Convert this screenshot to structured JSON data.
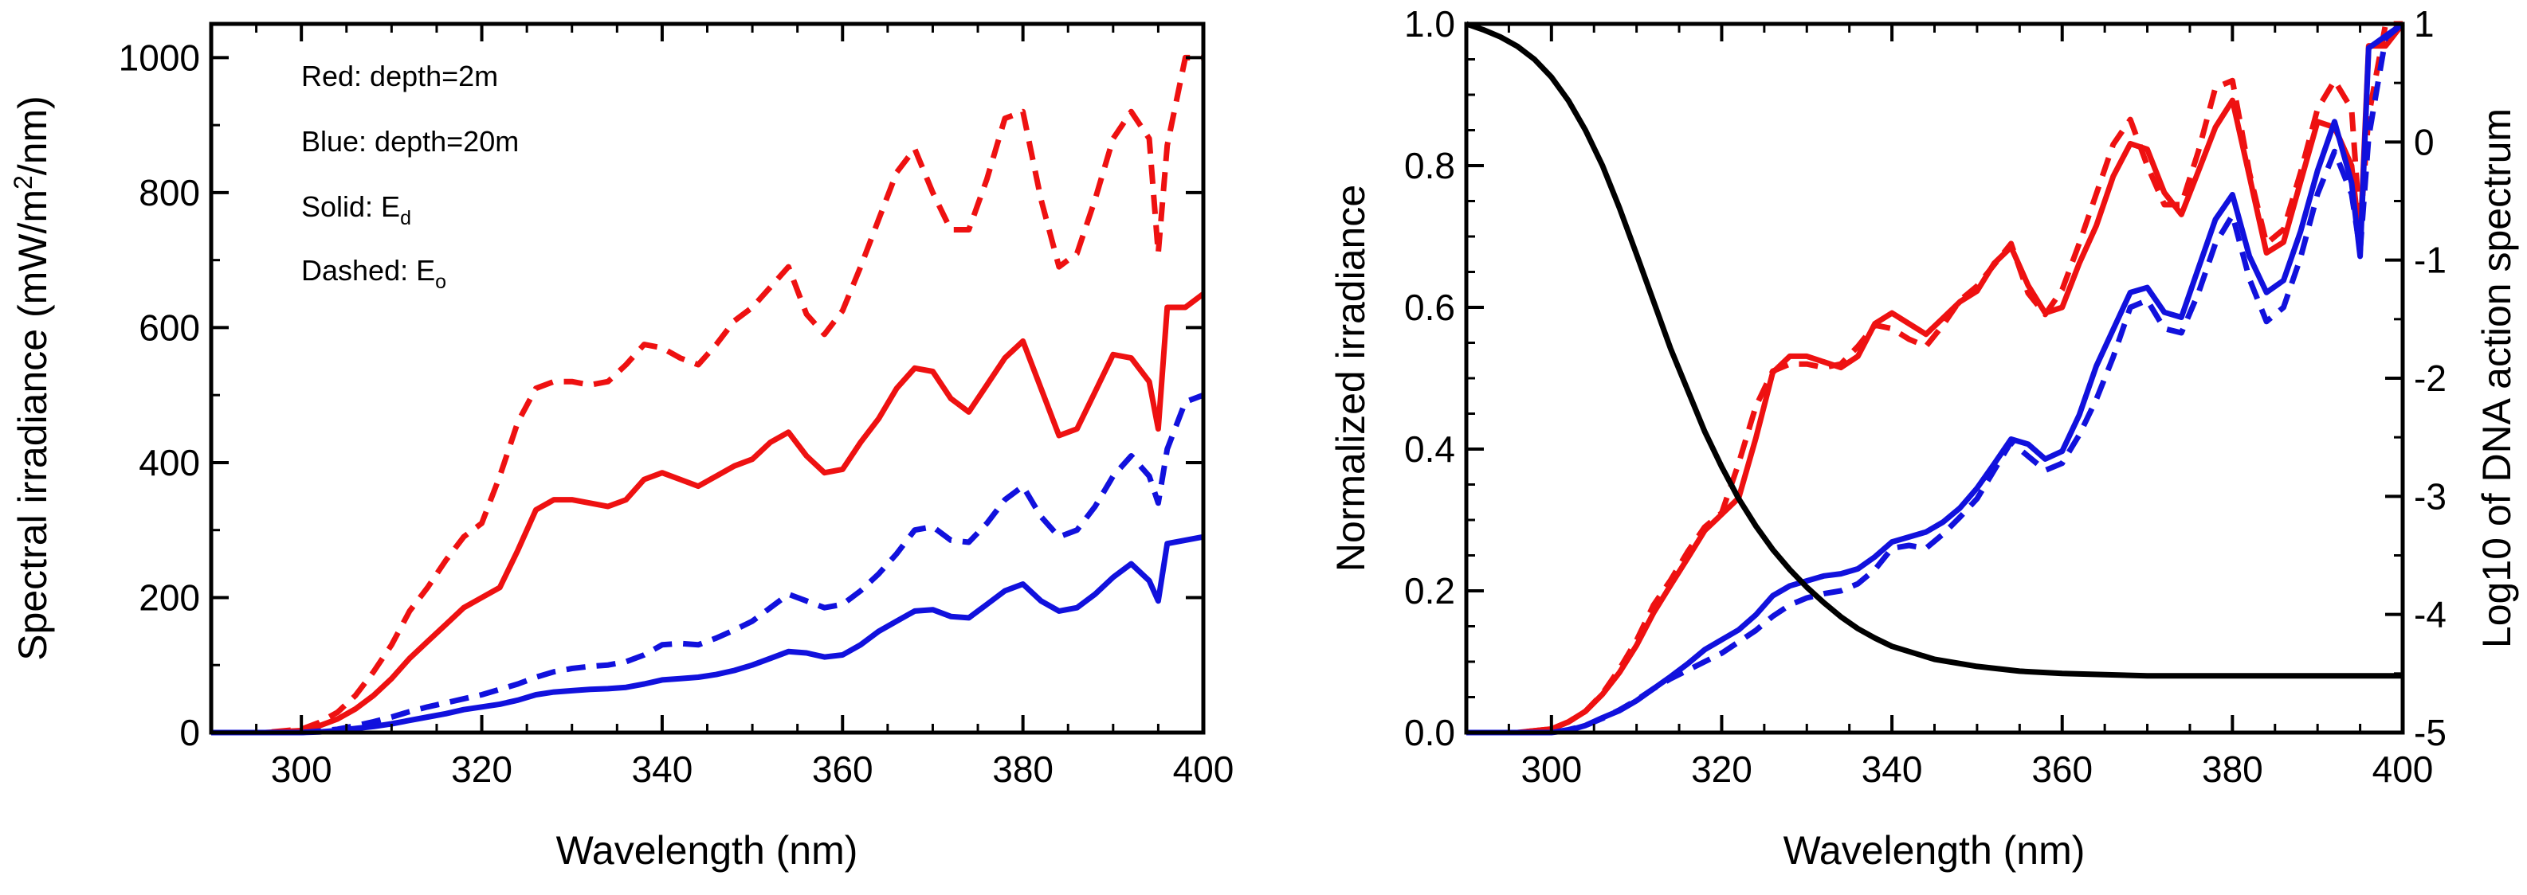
{
  "colors": {
    "red": "#ee1111",
    "blue": "#1111dd",
    "black": "#000000"
  },
  "chart_data": [
    {
      "type": "line",
      "panel": "left",
      "xlabel": "Wavelength (nm)",
      "ylabel_main": "Spectral irradiance (mW/m",
      "ylabel_sup": "2",
      "ylabel_end": "/nm)",
      "xlim": [
        290,
        400
      ],
      "ylim": [
        0,
        1050
      ],
      "xticks": [
        300,
        320,
        340,
        360,
        380,
        400
      ],
      "yticks": [
        0,
        200,
        400,
        600,
        800,
        1000
      ],
      "legend_lines": [
        {
          "text": "Red: depth=2m",
          "sub": ""
        },
        {
          "text": "Blue: depth=20m",
          "sub": ""
        },
        {
          "text": "Solid: E",
          "sub": "d"
        },
        {
          "text": "Dashed: E",
          "sub": "o"
        }
      ],
      "x": [
        290,
        296,
        300,
        302,
        304,
        306,
        308,
        310,
        312,
        314,
        316,
        318,
        320,
        322,
        324,
        326,
        328,
        330,
        332,
        334,
        336,
        338,
        340,
        342,
        344,
        346,
        348,
        350,
        352,
        354,
        356,
        358,
        360,
        362,
        364,
        366,
        368,
        370,
        372,
        374,
        376,
        378,
        380,
        382,
        384,
        386,
        388,
        390,
        392,
        394,
        395,
        396,
        398,
        400
      ],
      "series": [
        {
          "name": "Red solid (E_d, 2m)",
          "color": "red",
          "dash": false,
          "values": [
            0,
            0,
            3,
            10,
            20,
            35,
            55,
            80,
            110,
            135,
            160,
            185,
            200,
            215,
            270,
            330,
            345,
            345,
            340,
            335,
            345,
            375,
            385,
            375,
            365,
            380,
            395,
            405,
            430,
            445,
            410,
            385,
            390,
            430,
            465,
            510,
            540,
            535,
            495,
            475,
            515,
            555,
            580,
            510,
            440,
            450,
            505,
            560,
            555,
            520,
            450,
            630,
            630,
            650
          ]
        },
        {
          "name": "Red dashed (E_o, 2m)",
          "color": "red",
          "dash": true,
          "values": [
            0,
            0,
            5,
            15,
            30,
            55,
            90,
            130,
            180,
            215,
            255,
            290,
            310,
            380,
            460,
            510,
            520,
            520,
            515,
            520,
            545,
            575,
            570,
            555,
            545,
            575,
            610,
            630,
            660,
            690,
            620,
            590,
            625,
            690,
            760,
            830,
            865,
            800,
            745,
            745,
            820,
            910,
            920,
            790,
            690,
            710,
            790,
            880,
            920,
            880,
            710,
            870,
            1000,
            1000
          ]
        },
        {
          "name": "Blue solid (E_d, 20m)",
          "color": "blue",
          "dash": false,
          "values": [
            0,
            0,
            0,
            1,
            3,
            6,
            9,
            13,
            18,
            23,
            28,
            34,
            38,
            42,
            48,
            56,
            60,
            62,
            64,
            65,
            67,
            72,
            78,
            80,
            82,
            86,
            92,
            100,
            110,
            120,
            118,
            112,
            115,
            130,
            150,
            165,
            180,
            182,
            172,
            170,
            190,
            210,
            220,
            195,
            180,
            185,
            205,
            230,
            250,
            225,
            195,
            280,
            285,
            290
          ]
        },
        {
          "name": "Blue dashed (E_o, 20m)",
          "color": "blue",
          "dash": true,
          "values": [
            0,
            0,
            0,
            2,
            5,
            10,
            16,
            23,
            31,
            38,
            44,
            50,
            56,
            64,
            72,
            82,
            90,
            95,
            98,
            100,
            105,
            115,
            130,
            132,
            130,
            140,
            152,
            165,
            185,
            205,
            195,
            185,
            190,
            210,
            235,
            265,
            300,
            305,
            285,
            282,
            310,
            345,
            365,
            320,
            290,
            300,
            335,
            380,
            410,
            380,
            340,
            420,
            490,
            500
          ]
        }
      ]
    },
    {
      "type": "line",
      "panel": "right",
      "xlabel": "Wavelength (nm)",
      "ylabel_left": "Normalized irradiance",
      "ylabel_right": "Log10 of DNA action spectrum",
      "xlim": [
        290,
        400
      ],
      "ylim_left": [
        0,
        1.0
      ],
      "ylim_right": [
        -5,
        1
      ],
      "xticks": [
        300,
        320,
        340,
        360,
        380,
        400
      ],
      "yticks_left": [
        "0.0",
        "0.2",
        "0.4",
        "0.6",
        "0.8",
        "1.0"
      ],
      "yticks_right": [
        "-5",
        "-4",
        "-3",
        "-2",
        "-1",
        "0",
        "1"
      ],
      "x": [
        290,
        296,
        300,
        302,
        304,
        306,
        308,
        310,
        312,
        314,
        316,
        318,
        320,
        322,
        324,
        326,
        328,
        330,
        332,
        334,
        336,
        338,
        340,
        342,
        344,
        346,
        348,
        350,
        352,
        354,
        356,
        358,
        360,
        362,
        364,
        366,
        368,
        370,
        372,
        374,
        376,
        378,
        380,
        382,
        384,
        386,
        388,
        390,
        392,
        394,
        395,
        396,
        398,
        400
      ],
      "series": [
        {
          "name": "Red solid normalized",
          "color": "red",
          "dash": false,
          "axis": "left",
          "values": [
            0,
            0,
            0.005,
            0.015,
            0.03,
            0.054,
            0.085,
            0.123,
            0.169,
            0.208,
            0.246,
            0.285,
            0.308,
            0.331,
            0.415,
            0.508,
            0.531,
            0.531,
            0.523,
            0.515,
            0.531,
            0.577,
            0.592,
            0.577,
            0.562,
            0.585,
            0.608,
            0.623,
            0.662,
            0.685,
            0.631,
            0.592,
            0.6,
            0.662,
            0.715,
            0.785,
            0.831,
            0.823,
            0.762,
            0.731,
            0.792,
            0.854,
            0.892,
            0.785,
            0.677,
            0.692,
            0.777,
            0.862,
            0.854,
            0.8,
            0.692,
            0.969,
            0.969,
            1.0
          ]
        },
        {
          "name": "Red dashed normalized",
          "color": "red",
          "dash": true,
          "axis": "left",
          "values": [
            0,
            0,
            0.005,
            0.015,
            0.03,
            0.055,
            0.09,
            0.13,
            0.18,
            0.215,
            0.255,
            0.29,
            0.31,
            0.38,
            0.46,
            0.51,
            0.52,
            0.52,
            0.515,
            0.52,
            0.545,
            0.575,
            0.57,
            0.555,
            0.545,
            0.575,
            0.61,
            0.63,
            0.66,
            0.69,
            0.62,
            0.59,
            0.625,
            0.69,
            0.76,
            0.83,
            0.865,
            0.8,
            0.745,
            0.745,
            0.82,
            0.91,
            0.92,
            0.79,
            0.69,
            0.71,
            0.79,
            0.88,
            0.92,
            0.88,
            0.71,
            0.87,
            1.0,
            1.0
          ]
        },
        {
          "name": "Blue solid normalized",
          "color": "blue",
          "dash": false,
          "axis": "left",
          "values": [
            0,
            0,
            0,
            0.003,
            0.01,
            0.021,
            0.031,
            0.045,
            0.062,
            0.079,
            0.097,
            0.117,
            0.131,
            0.145,
            0.166,
            0.193,
            0.207,
            0.214,
            0.221,
            0.224,
            0.231,
            0.248,
            0.269,
            0.276,
            0.283,
            0.297,
            0.317,
            0.345,
            0.379,
            0.414,
            0.407,
            0.386,
            0.397,
            0.448,
            0.517,
            0.569,
            0.621,
            0.628,
            0.593,
            0.586,
            0.655,
            0.724,
            0.759,
            0.672,
            0.621,
            0.638,
            0.707,
            0.793,
            0.862,
            0.776,
            0.672,
            0.966,
            0.983,
            1.0
          ]
        },
        {
          "name": "Blue dashed normalized",
          "color": "blue",
          "dash": true,
          "axis": "left",
          "values": [
            0,
            0,
            0,
            0.004,
            0.01,
            0.02,
            0.032,
            0.046,
            0.062,
            0.076,
            0.088,
            0.1,
            0.112,
            0.128,
            0.144,
            0.164,
            0.18,
            0.19,
            0.196,
            0.2,
            0.21,
            0.23,
            0.26,
            0.264,
            0.26,
            0.28,
            0.304,
            0.33,
            0.37,
            0.41,
            0.39,
            0.37,
            0.38,
            0.42,
            0.47,
            0.53,
            0.6,
            0.61,
            0.57,
            0.564,
            0.62,
            0.69,
            0.73,
            0.64,
            0.58,
            0.6,
            0.67,
            0.76,
            0.82,
            0.76,
            0.68,
            0.84,
            0.98,
            1.0
          ]
        },
        {
          "name": "Log10 DNA action spectrum",
          "color": "black",
          "dash": false,
          "axis": "right",
          "x": [
            290,
            292,
            294,
            296,
            298,
            300,
            302,
            304,
            306,
            308,
            310,
            312,
            314,
            316,
            318,
            320,
            322,
            324,
            326,
            328,
            330,
            332,
            334,
            336,
            338,
            340,
            345,
            350,
            355,
            360,
            365,
            370,
            380,
            390,
            400
          ],
          "values": [
            1.0,
            0.95,
            0.89,
            0.81,
            0.7,
            0.55,
            0.35,
            0.1,
            -0.2,
            -0.56,
            -0.95,
            -1.35,
            -1.75,
            -2.1,
            -2.45,
            -2.75,
            -3.02,
            -3.25,
            -3.45,
            -3.62,
            -3.77,
            -3.9,
            -4.02,
            -4.12,
            -4.2,
            -4.27,
            -4.38,
            -4.44,
            -4.48,
            -4.5,
            -4.51,
            -4.52,
            -4.52,
            -4.52,
            -4.52
          ]
        }
      ]
    }
  ]
}
